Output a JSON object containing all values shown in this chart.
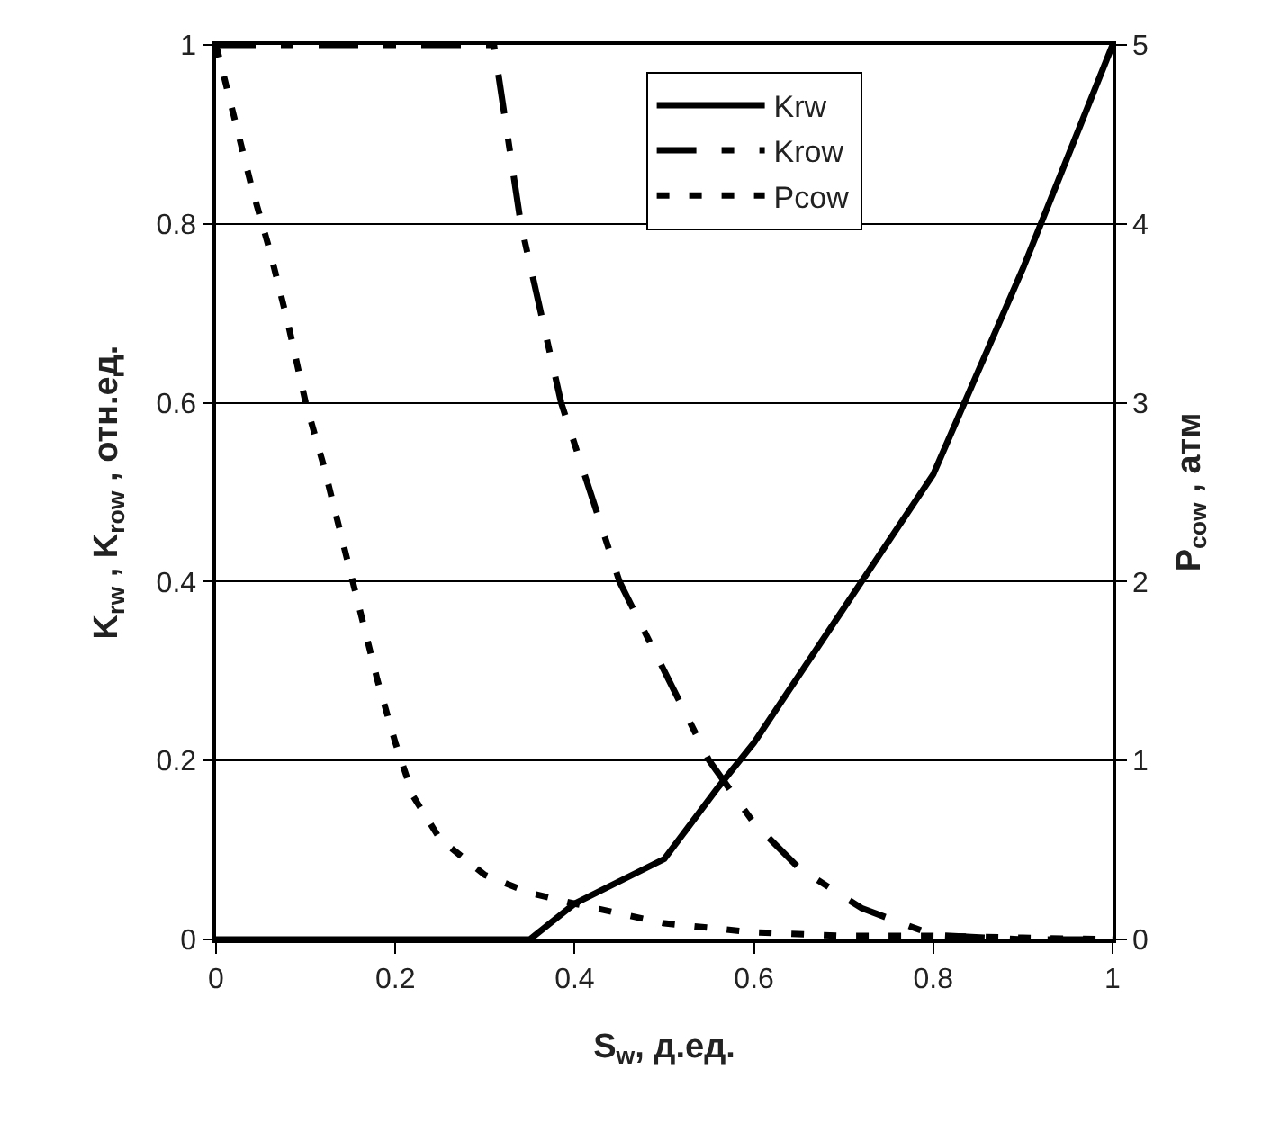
{
  "chart_data": {
    "type": "line",
    "xlabel": "S$_{w}$, д.ед.",
    "ylabel": "K$_{rw}$ , K$_{row}$ , отн.ед.",
    "y2label": "P$_{cow}$ , атм",
    "xlim": [
      0,
      1
    ],
    "xticks": [
      0,
      0.2,
      0.4,
      0.6,
      0.8,
      1
    ],
    "ylim": [
      0,
      1
    ],
    "yticks": [
      0,
      0.2,
      0.4,
      0.6,
      0.8,
      1
    ],
    "y2lim": [
      0,
      5
    ],
    "y2ticks": [
      0,
      1,
      2,
      3,
      4,
      5
    ],
    "grid": "y",
    "legend": "top",
    "marker": "none",
    "series": [
      {
        "name": "Krw",
        "color": "#000000",
        "line_style": "solid",
        "x": [
          0,
          0.35,
          0.4,
          0.5,
          0.56,
          0.6,
          0.7,
          0.8,
          0.9,
          1
        ],
        "values": [
          0,
          0,
          0.04,
          0.09,
          0.17,
          0.22,
          0.37,
          0.52,
          0.75,
          1
        ]
      },
      {
        "name": "Krow",
        "color": "#000000",
        "line_style": "dashed",
        "x": [
          0,
          0.31,
          0.34,
          0.385,
          0.45,
          0.55,
          0.6,
          0.65,
          0.72,
          0.8,
          0.9,
          1
        ],
        "values": [
          1,
          1,
          0.8,
          0.6,
          0.4,
          0.2,
          0.13,
          0.08,
          0.035,
          0.005,
          0,
          0
        ]
      },
      {
        "name": "Pcow",
        "color": "#000000",
        "line_style": "dotted",
        "axis": "y2",
        "x": [
          0,
          0.02,
          0.04,
          0.06,
          0.08,
          0.1,
          0.12,
          0.14,
          0.16,
          0.18,
          0.2,
          0.22,
          0.25,
          0.3,
          0.35,
          0.4,
          0.5,
          0.6,
          0.7,
          0.8,
          0.9,
          1
        ],
        "values": [
          5,
          4.6,
          4.2,
          3.85,
          3.45,
          3.0,
          2.65,
          2.25,
          1.85,
          1.45,
          1.1,
          0.8,
          0.56,
          0.36,
          0.26,
          0.2,
          0.09,
          0.04,
          0.02,
          0.02,
          0.01,
          0
        ]
      }
    ]
  }
}
